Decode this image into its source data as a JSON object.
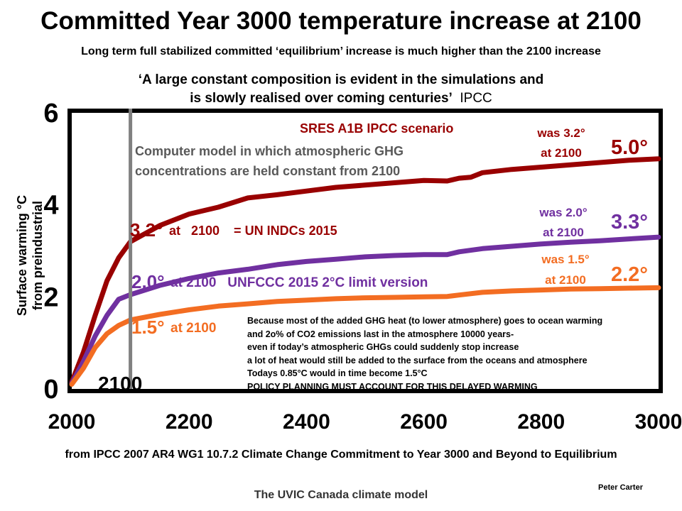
{
  "title": "Committed Year 3000 temperature increase at 2100",
  "subtitle": "Long term full stabilized committed ‘equilibrium’  increase  is much higher than the  2100 increase",
  "quote": {
    "line1": "‘A large constant composition is evident in the simulations and",
    "line2a": "is slowly realised over coming centuries’",
    "line2b": "IPCC"
  },
  "source": "from IPCC 2007 AR4 WG1 10.7.2  Climate Change Commitment to Year 3000 and Beyond to Equilibrium",
  "author": "Peter Carter",
  "model_label": "The UVIC Canada  climate model",
  "colors": {
    "red": "#990000",
    "purple": "#7030a0",
    "orange": "#f36d22",
    "divider": "#808080"
  },
  "chart_data": {
    "type": "line",
    "ylabel_line1": "Surface  warming °C",
    "ylabel_line2": "from preindustrial",
    "xlim": [
      2000,
      3000
    ],
    "ylim": [
      0,
      6
    ],
    "x_ticks": [
      "2000",
      "2200",
      "2400",
      "2600",
      "2800",
      "3000"
    ],
    "y_ticks": [
      "0",
      "2",
      "4",
      "6"
    ],
    "grid": false,
    "vline_label": "2100",
    "series": [
      {
        "name": "SRES A1B IPCC scenario",
        "color": "#990000",
        "points": [
          [
            2000,
            0.15
          ],
          [
            2020,
            0.8
          ],
          [
            2040,
            1.6
          ],
          [
            2060,
            2.35
          ],
          [
            2080,
            2.85
          ],
          [
            2100,
            3.2
          ],
          [
            2150,
            3.55
          ],
          [
            2200,
            3.8
          ],
          [
            2250,
            3.95
          ],
          [
            2300,
            4.15
          ],
          [
            2350,
            4.22
          ],
          [
            2400,
            4.3
          ],
          [
            2450,
            4.38
          ],
          [
            2500,
            4.43
          ],
          [
            2550,
            4.48
          ],
          [
            2600,
            4.53
          ],
          [
            2640,
            4.52
          ],
          [
            2660,
            4.58
          ],
          [
            2680,
            4.6
          ],
          [
            2700,
            4.7
          ],
          [
            2750,
            4.77
          ],
          [
            2800,
            4.82
          ],
          [
            2850,
            4.87
          ],
          [
            2900,
            4.92
          ],
          [
            2950,
            4.97
          ],
          [
            3000,
            5.0
          ]
        ]
      },
      {
        "name": "UNFCCC 2015 2°C limit version",
        "color": "#7030a0",
        "points": [
          [
            2000,
            0.12
          ],
          [
            2020,
            0.6
          ],
          [
            2040,
            1.15
          ],
          [
            2060,
            1.6
          ],
          [
            2080,
            1.95
          ],
          [
            2100,
            2.05
          ],
          [
            2150,
            2.25
          ],
          [
            2200,
            2.4
          ],
          [
            2250,
            2.52
          ],
          [
            2300,
            2.6
          ],
          [
            2350,
            2.7
          ],
          [
            2400,
            2.77
          ],
          [
            2450,
            2.82
          ],
          [
            2500,
            2.87
          ],
          [
            2550,
            2.9
          ],
          [
            2600,
            2.92
          ],
          [
            2640,
            2.92
          ],
          [
            2660,
            2.98
          ],
          [
            2700,
            3.05
          ],
          [
            2750,
            3.1
          ],
          [
            2800,
            3.15
          ],
          [
            2850,
            3.19
          ],
          [
            2900,
            3.22
          ],
          [
            2950,
            3.26
          ],
          [
            3000,
            3.3
          ]
        ]
      },
      {
        "name": "1.5° at 2100",
        "color": "#f36d22",
        "points": [
          [
            2000,
            0.1
          ],
          [
            2020,
            0.45
          ],
          [
            2040,
            0.9
          ],
          [
            2060,
            1.2
          ],
          [
            2080,
            1.38
          ],
          [
            2100,
            1.5
          ],
          [
            2150,
            1.62
          ],
          [
            2200,
            1.72
          ],
          [
            2250,
            1.8
          ],
          [
            2300,
            1.85
          ],
          [
            2350,
            1.9
          ],
          [
            2400,
            1.93
          ],
          [
            2450,
            1.96
          ],
          [
            2500,
            1.98
          ],
          [
            2550,
            1.99
          ],
          [
            2600,
            2.0
          ],
          [
            2640,
            2.01
          ],
          [
            2660,
            2.04
          ],
          [
            2700,
            2.1
          ],
          [
            2750,
            2.13
          ],
          [
            2800,
            2.15
          ],
          [
            2850,
            2.17
          ],
          [
            2900,
            2.18
          ],
          [
            2950,
            2.19
          ],
          [
            3000,
            2.2
          ]
        ]
      }
    ],
    "annotations": {
      "scenario": "SRES A1B IPCC scenario",
      "model_note_line1": "Computer model in which atmospheric GHG",
      "model_note_line2": "concentrations  are held constant from 2100",
      "red_2100_value": "3.2°",
      "red_2100_text": "at   2100    = UN INDCs 2015",
      "purple_2100_value": "2.0°",
      "purple_2100_text": "at 2100   UNFCCC 2015 2°C limit version",
      "orange_2100_value": "1.5°",
      "orange_2100_text": "at 2100",
      "red_was_line1": "was 3.2°",
      "red_was_line2": "at 2100",
      "red_end": "5.0°",
      "purple_was_line1": "was 2.0°",
      "purple_was_line2": "at 2100",
      "purple_end": "3.3°",
      "orange_was_line1": "was 1.5°",
      "orange_was_line2": "at 2100",
      "orange_end": "2.2°"
    },
    "explanation": [
      "Because most of the added GHG heat (to lower atmosphere) goes to ocean warming",
      "and 2o% of CO2 emissions last in the atmosphere 10000 years-",
      "even if today’s atmospheric GHGs could suddenly stop increase",
      "a lot of heat would still be added to the surface from the oceans and atmosphere",
      "Todays 0.85°C would in time become 1.5°C",
      "POLICY PLANNING MUST ACCOUNT FOR THIS DELAYED WARMING"
    ]
  }
}
